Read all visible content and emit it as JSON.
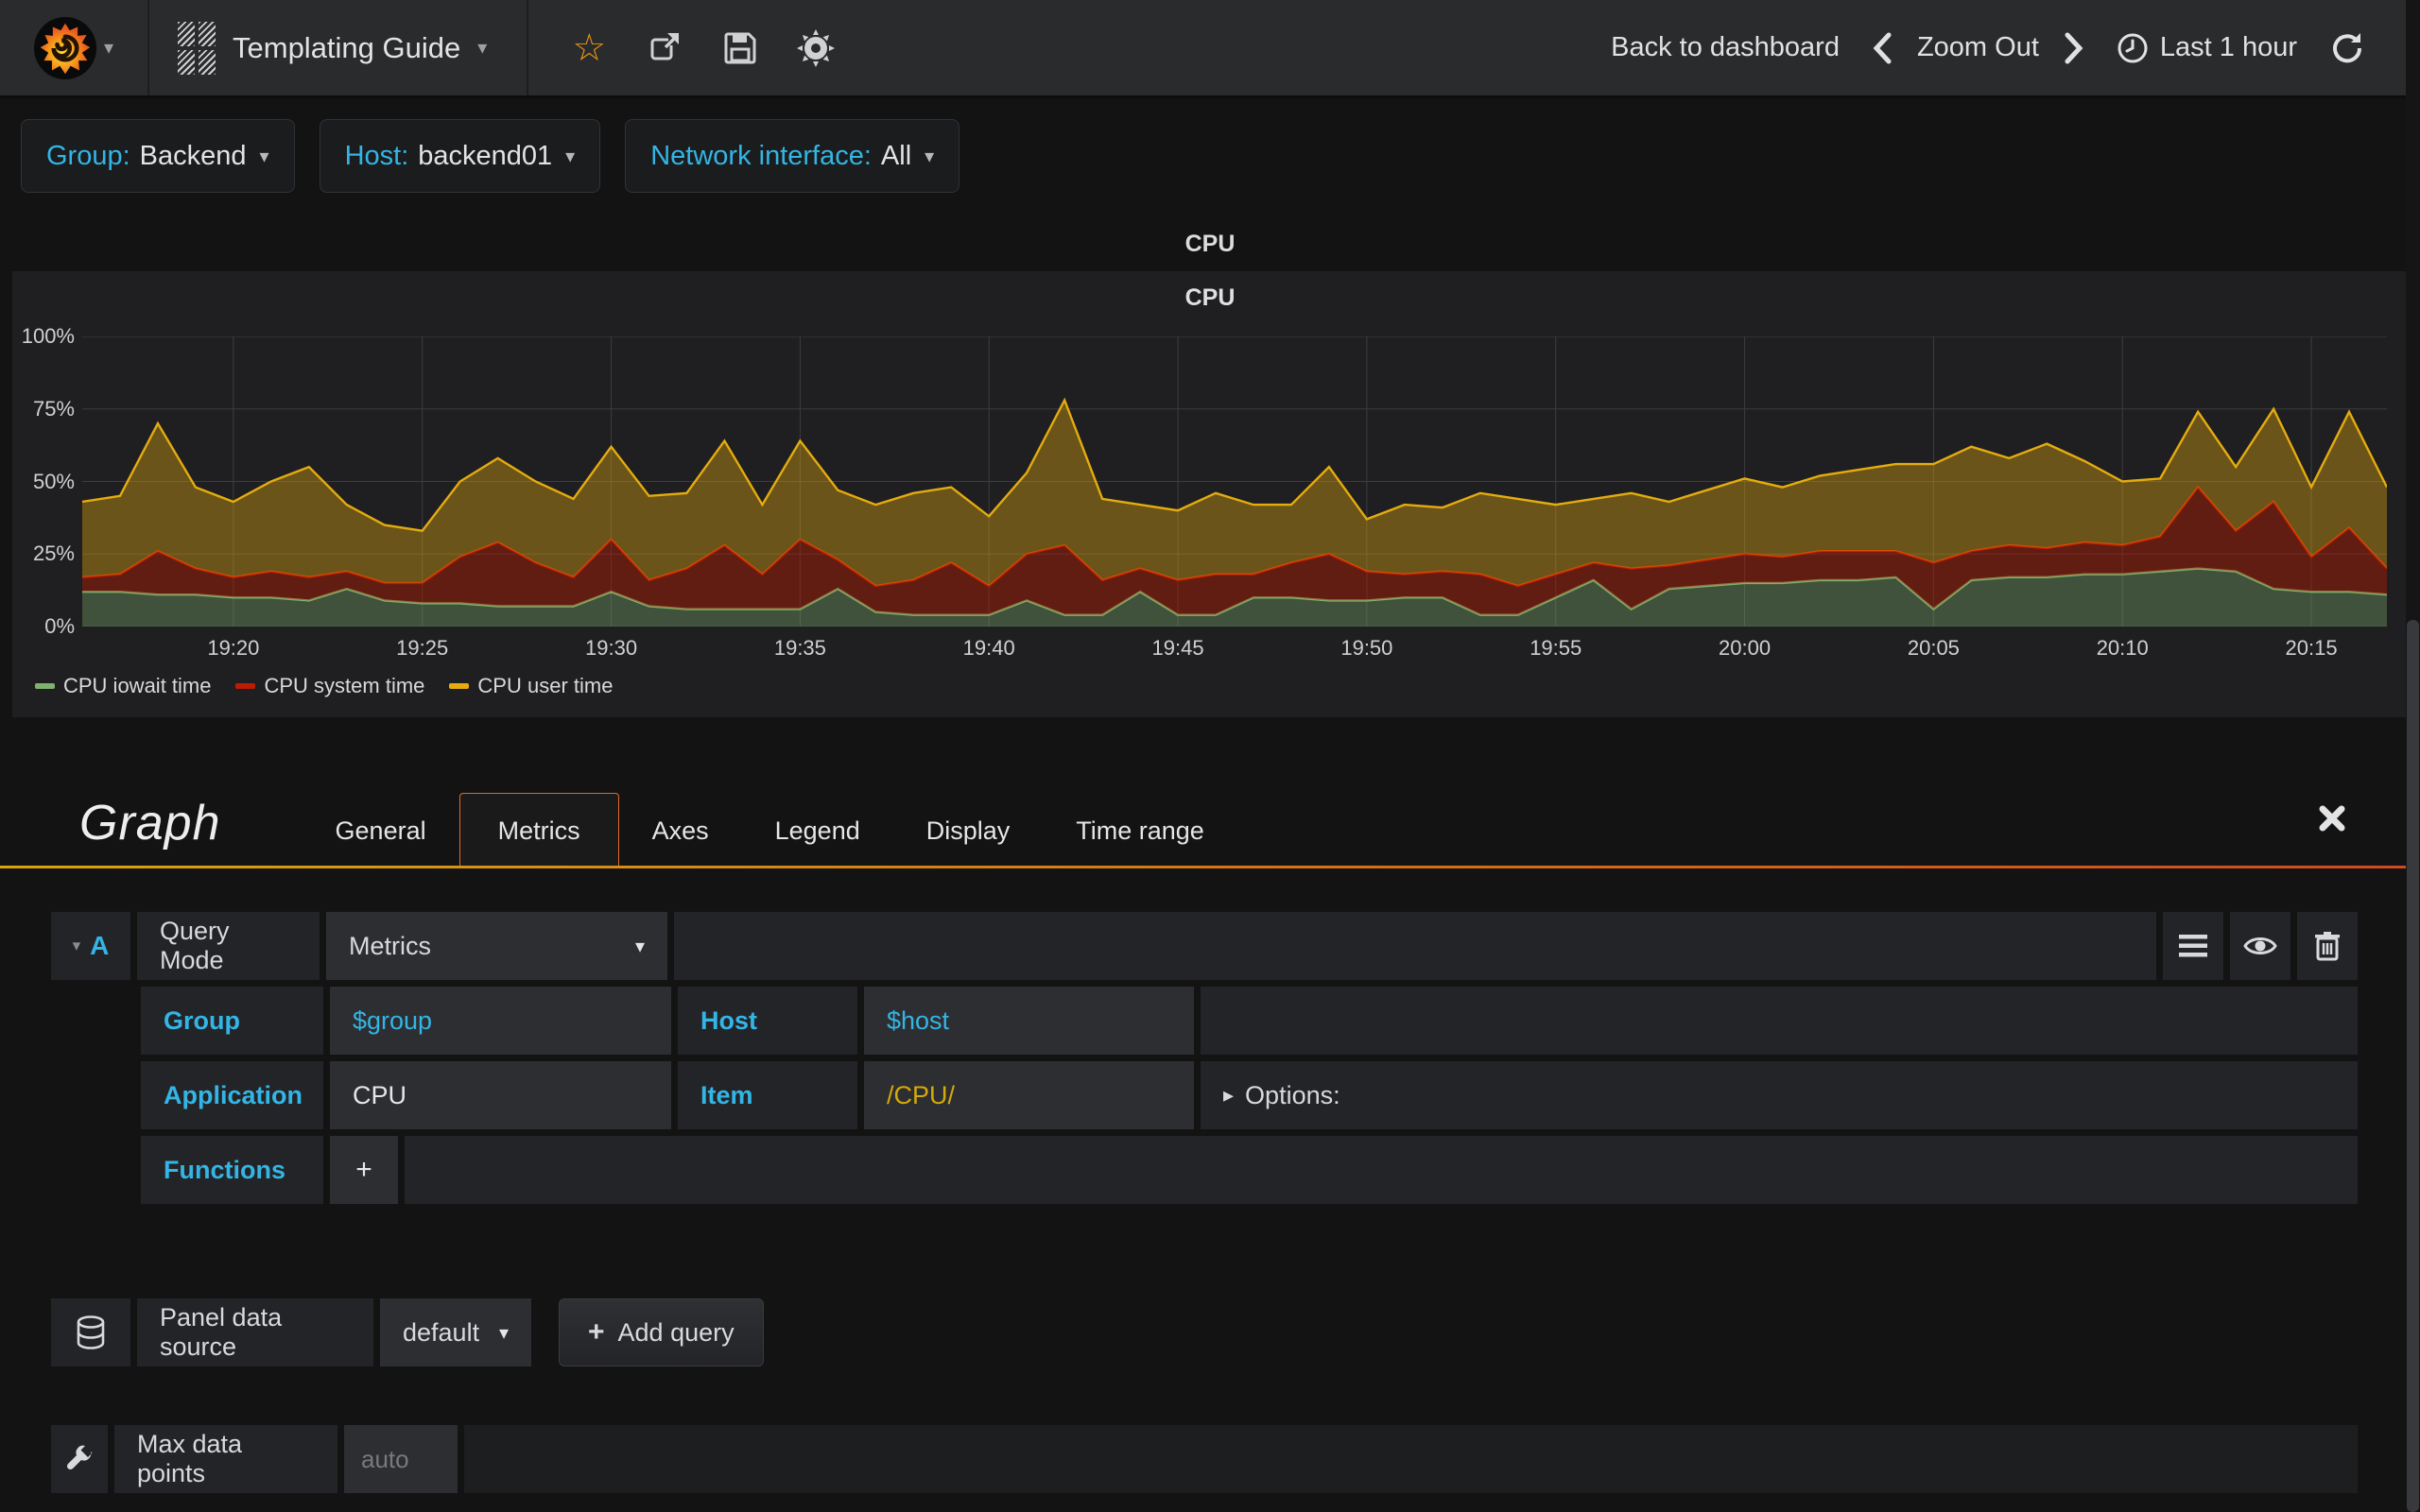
{
  "navbar": {
    "dashboard_title": "Templating Guide",
    "back_to_dashboard": "Back to dashboard",
    "zoom_out": "Zoom Out",
    "time_range": "Last 1 hour"
  },
  "variables": [
    {
      "label": "Group:",
      "value": "Backend"
    },
    {
      "label": "Host:",
      "value": "backend01"
    },
    {
      "label": "Network interface:",
      "value": "All"
    }
  ],
  "row_title": "CPU",
  "panel": {
    "title": "CPU"
  },
  "chart_data": {
    "type": "area",
    "stacked": true,
    "title": "CPU",
    "ylabel": "percent",
    "ylim": [
      0,
      100
    ],
    "x_range": [
      "19:16",
      "20:17"
    ],
    "x_span_minutes": 61,
    "grid": true,
    "legend_position": "bottom-left",
    "y_ticks": [
      {
        "label": "0%",
        "value": 0
      },
      {
        "label": "25%",
        "value": 25
      },
      {
        "label": "50%",
        "value": 50
      },
      {
        "label": "75%",
        "value": 75
      },
      {
        "label": "100%",
        "value": 100
      }
    ],
    "x_ticks": [
      {
        "label": "19:20",
        "minute": 4
      },
      {
        "label": "19:25",
        "minute": 9
      },
      {
        "label": "19:30",
        "minute": 14
      },
      {
        "label": "19:35",
        "minute": 19
      },
      {
        "label": "19:40",
        "minute": 24
      },
      {
        "label": "19:45",
        "minute": 29
      },
      {
        "label": "19:50",
        "minute": 34
      },
      {
        "label": "19:55",
        "minute": 39
      },
      {
        "label": "20:00",
        "minute": 44
      },
      {
        "label": "20:05",
        "minute": 49
      },
      {
        "label": "20:10",
        "minute": 54
      },
      {
        "label": "20:15",
        "minute": 59
      }
    ],
    "series": [
      {
        "name": "CPU iowait time",
        "color": "#7EB26D",
        "fill": "rgba(126,178,109,0.35)",
        "values": [
          12,
          12,
          11,
          11,
          10,
          10,
          9,
          13,
          9,
          8,
          8,
          7,
          7,
          7,
          12,
          7,
          6,
          6,
          6,
          6,
          13,
          5,
          4,
          4,
          4,
          9,
          4,
          4,
          12,
          4,
          4,
          10,
          10,
          9,
          9,
          10,
          10,
          4,
          4,
          10,
          16,
          6,
          13,
          14,
          15,
          15,
          16,
          16,
          17,
          6,
          16,
          17,
          17,
          18,
          18,
          19,
          20,
          19,
          13,
          12,
          12,
          11
        ]
      },
      {
        "name": "CPU system time",
        "color": "#BF1B00",
        "fill": "rgba(191,27,0,0.42)",
        "values": [
          5,
          6,
          15,
          9,
          7,
          9,
          8,
          6,
          6,
          7,
          16,
          22,
          15,
          10,
          18,
          9,
          14,
          22,
          12,
          24,
          10,
          9,
          12,
          18,
          10,
          16,
          24,
          12,
          8,
          12,
          14,
          8,
          12,
          16,
          10,
          8,
          9,
          14,
          10,
          8,
          6,
          14,
          8,
          9,
          10,
          9,
          10,
          10,
          9,
          16,
          10,
          11,
          10,
          11,
          10,
          12,
          28,
          14,
          30,
          12,
          22,
          9
        ]
      },
      {
        "name": "CPU user time",
        "color": "#E5AC0E",
        "fill": "rgba(229,172,14,0.38)",
        "values": [
          26,
          27,
          44,
          28,
          26,
          31,
          38,
          23,
          20,
          18,
          26,
          29,
          28,
          27,
          32,
          29,
          26,
          36,
          24,
          34,
          24,
          28,
          30,
          26,
          24,
          28,
          50,
          28,
          22,
          24,
          28,
          24,
          20,
          30,
          18,
          24,
          22,
          28,
          30,
          24,
          22,
          26,
          22,
          24,
          26,
          24,
          26,
          28,
          30,
          34,
          36,
          30,
          36,
          28,
          22,
          20,
          26,
          22,
          32,
          24,
          40,
          28
        ]
      }
    ]
  },
  "editor": {
    "title": "Graph",
    "tabs": [
      "General",
      "Metrics",
      "Axes",
      "Legend",
      "Display",
      "Time range"
    ],
    "query": {
      "ref_letter": "A",
      "mode_label": "Query Mode",
      "mode_value": "Metrics",
      "group_label": "Group",
      "group_value": "$group",
      "host_label": "Host",
      "host_value": "$host",
      "application_label": "Application",
      "application_value": "CPU",
      "item_label": "Item",
      "item_value": "/CPU/",
      "options_label": "Options:",
      "functions_label": "Functions",
      "add_function": "+"
    },
    "datasource": {
      "label": "Panel data source",
      "value": "default",
      "add_query_plus": "+",
      "add_query": "Add query"
    },
    "max_data_points": {
      "label": "Max data points",
      "placeholder": "auto"
    }
  }
}
